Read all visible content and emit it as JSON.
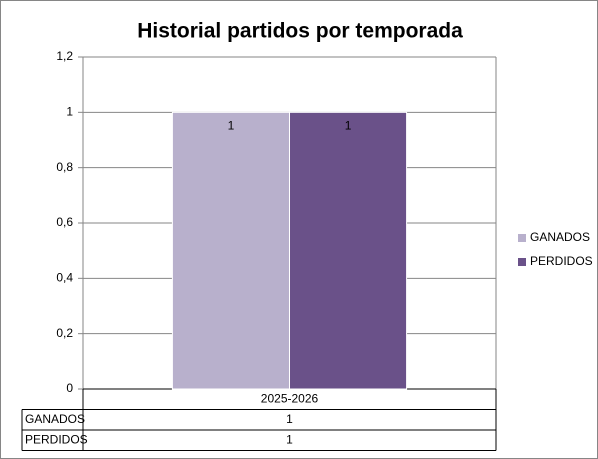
{
  "chart_data": {
    "type": "bar",
    "title": "Historial partidos por temporada",
    "categories": [
      "2025-2026"
    ],
    "series": [
      {
        "name": "GANADOS",
        "color": "#b8b0cc",
        "values": [
          1
        ]
      },
      {
        "name": "PERDIDOS",
        "color": "#6a5189",
        "values": [
          1
        ]
      }
    ],
    "ylim": [
      0,
      1.2
    ],
    "yticks": [
      0,
      {
        "value": 0.2,
        "label": "0,2"
      },
      {
        "value": 0.4,
        "label": "0,4"
      },
      {
        "value": 0.6,
        "label": "0,6"
      },
      {
        "value": 0.8,
        "label": "0,8"
      },
      1,
      {
        "value": 1.2,
        "label": "1,2"
      }
    ],
    "grid": true,
    "legend": "right",
    "data_table": true
  }
}
